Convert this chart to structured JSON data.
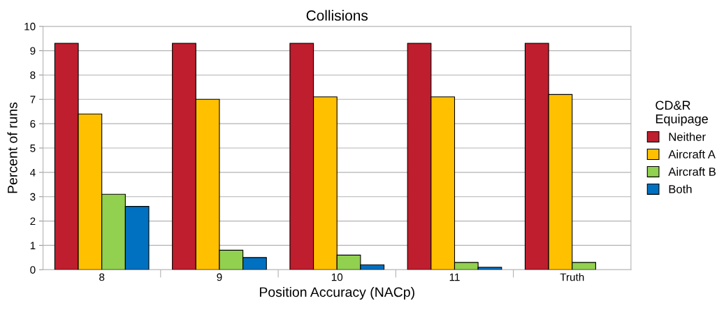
{
  "chart_data": {
    "type": "bar",
    "title": "Collisions",
    "xlabel": "Position Accuracy (NACp)",
    "ylabel": "Percent of runs",
    "categories": [
      "8",
      "9",
      "10",
      "11",
      "Truth"
    ],
    "series": [
      {
        "name": "Neither",
        "color": "#be1e2d",
        "values": [
          9.3,
          9.3,
          9.3,
          9.3,
          9.3
        ]
      },
      {
        "name": "Aircraft A",
        "color": "#ffc000",
        "values": [
          6.4,
          7.0,
          7.1,
          7.1,
          7.2
        ]
      },
      {
        "name": "Aircraft B",
        "color": "#92d050",
        "values": [
          3.1,
          0.8,
          0.6,
          0.3,
          0.3
        ]
      },
      {
        "name": "Both",
        "color": "#0070c0",
        "values": [
          2.6,
          0.5,
          0.2,
          0.1,
          null
        ]
      }
    ],
    "ylim": [
      0,
      10
    ],
    "yticks": [
      0,
      1,
      2,
      3,
      4,
      5,
      6,
      7,
      8,
      9,
      10
    ],
    "grid": "y",
    "legend": "right",
    "legend_title": "CD&R\nEquipage"
  }
}
